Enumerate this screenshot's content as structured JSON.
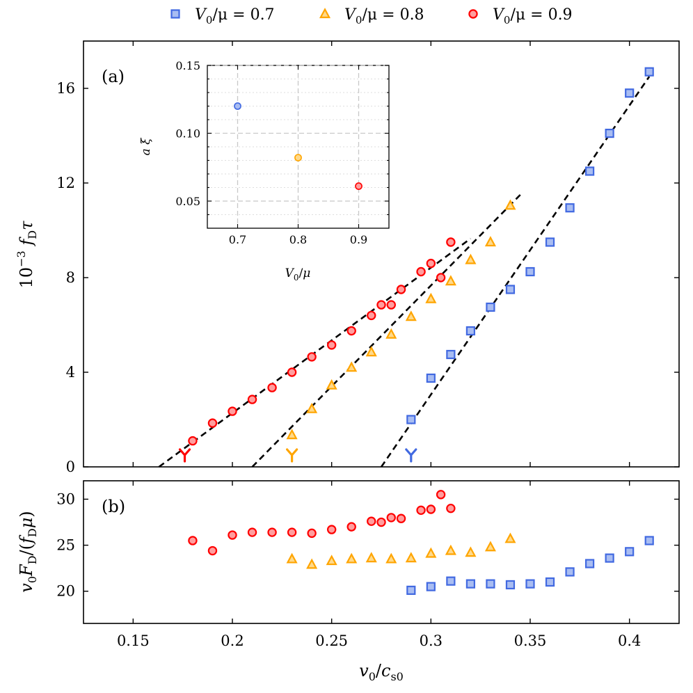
{
  "chart_data": [
    {
      "panel_label": "(a)",
      "type": "scatter",
      "xlabel": "v0/cs0",
      "ylabel": "10^-3 fD τ",
      "xlim": [
        0.125,
        0.425
      ],
      "ylim": [
        0,
        18
      ],
      "xticks": [
        0.15,
        0.2,
        0.25,
        0.3,
        0.35,
        0.4
      ],
      "yticks": [
        0,
        4,
        8,
        12,
        16
      ],
      "legend": {
        "placement": "top-outside",
        "entries": [
          {
            "sym": "V",
            "sub": "0",
            "rest": "/μ = 0.7",
            "color": "#4169e1",
            "marker": "square"
          },
          {
            "sym": "V",
            "sub": "0",
            "rest": "/μ = 0.8",
            "color": "#ffa500",
            "marker": "triangle"
          },
          {
            "sym": "V",
            "sub": "0",
            "rest": "/μ = 0.9",
            "color": "#ff0000",
            "marker": "circle"
          }
        ]
      },
      "series": [
        {
          "name": "V0/μ = 0.7",
          "color": "#4169e1",
          "marker": "square",
          "x": [
            0.29,
            0.3,
            0.31,
            0.32,
            0.33,
            0.34,
            0.35,
            0.36,
            0.37,
            0.38,
            0.39,
            0.4,
            0.41
          ],
          "y": [
            2.0,
            3.75,
            4.75,
            5.75,
            6.75,
            7.5,
            8.25,
            9.5,
            10.95,
            12.5,
            14.1,
            15.8,
            16.7
          ],
          "fit": [
            [
              0.275,
              0.0
            ],
            [
              0.41,
              16.5
            ]
          ],
          "threshold": 0.29
        },
        {
          "name": "V0/μ = 0.8",
          "color": "#ffa500",
          "marker": "triangle",
          "x": [
            0.23,
            0.24,
            0.25,
            0.26,
            0.27,
            0.28,
            0.29,
            0.3,
            0.31,
            0.32,
            0.33,
            0.34
          ],
          "y": [
            1.35,
            2.45,
            3.45,
            4.2,
            4.85,
            5.6,
            6.35,
            7.1,
            7.85,
            8.75,
            9.5,
            11.05
          ],
          "fit": [
            [
              0.21,
              0.0
            ],
            [
              0.345,
              11.5
            ]
          ],
          "threshold": 0.23
        },
        {
          "name": "V0/μ = 0.9",
          "color": "#ff0000",
          "marker": "circle",
          "x": [
            0.18,
            0.19,
            0.2,
            0.21,
            0.22,
            0.23,
            0.24,
            0.25,
            0.26,
            0.27,
            0.275,
            0.28,
            0.285,
            0.295,
            0.3,
            0.305,
            0.31
          ],
          "y": [
            1.1,
            1.85,
            2.35,
            2.85,
            3.35,
            4.0,
            4.65,
            5.15,
            5.75,
            6.4,
            6.85,
            6.85,
            7.5,
            8.25,
            8.6,
            8.0,
            9.5
          ],
          "fit": [
            [
              0.163,
              0.0
            ],
            [
              0.32,
              9.65
            ]
          ],
          "threshold": 0.176
        }
      ],
      "inset": {
        "xlabel": "V0/μ",
        "ylabel": "a ξ",
        "xlim": [
          0.65,
          0.95
        ],
        "ylim": [
          0.03,
          0.15
        ],
        "xticks": [
          0.7,
          0.8,
          0.9
        ],
        "yticks": [
          0.05,
          0.1,
          0.15
        ],
        "tick_labels_x": [
          "0.7",
          "0.8",
          "0.9"
        ],
        "tick_labels_y": [
          "0.05",
          "0.10",
          "0.15"
        ],
        "points": [
          {
            "x": 0.7,
            "y": 0.12,
            "color": "#4169e1"
          },
          {
            "x": 0.8,
            "y": 0.082,
            "color": "#ffa500"
          },
          {
            "x": 0.9,
            "y": 0.061,
            "color": "#ff0000"
          }
        ]
      }
    },
    {
      "panel_label": "(b)",
      "type": "scatter",
      "xlabel": "v0/cs0",
      "ylabel": "v0 FD/(fD μ)",
      "xlim": [
        0.125,
        0.425
      ],
      "ylim": [
        16.5,
        32
      ],
      "yticks": [
        20,
        25,
        30
      ],
      "series": [
        {
          "name": "V0/μ = 0.7",
          "color": "#4169e1",
          "marker": "square",
          "x": [
            0.29,
            0.3,
            0.31,
            0.32,
            0.33,
            0.34,
            0.35,
            0.36,
            0.37,
            0.38,
            0.39,
            0.4,
            0.41
          ],
          "y": [
            20.1,
            20.5,
            21.1,
            20.8,
            20.8,
            20.7,
            20.8,
            21.0,
            22.1,
            23.0,
            23.6,
            24.3,
            25.5
          ]
        },
        {
          "name": "V0/μ = 0.8",
          "color": "#ffa500",
          "marker": "triangle",
          "x": [
            0.23,
            0.24,
            0.25,
            0.26,
            0.27,
            0.28,
            0.29,
            0.3,
            0.31,
            0.32,
            0.33,
            0.34
          ],
          "y": [
            23.5,
            22.9,
            23.3,
            23.5,
            23.6,
            23.5,
            23.6,
            24.1,
            24.4,
            24.2,
            24.8,
            25.7
          ]
        },
        {
          "name": "V0/μ = 0.9",
          "color": "#ff0000",
          "marker": "circle",
          "x": [
            0.18,
            0.19,
            0.2,
            0.21,
            0.22,
            0.23,
            0.24,
            0.25,
            0.26,
            0.27,
            0.275,
            0.28,
            0.285,
            0.295,
            0.3,
            0.305,
            0.31
          ],
          "y": [
            25.5,
            24.4,
            26.1,
            26.4,
            26.4,
            26.4,
            26.3,
            26.7,
            27.0,
            27.6,
            27.5,
            28.0,
            27.9,
            28.8,
            28.9,
            30.5,
            29.0
          ]
        }
      ]
    }
  ]
}
